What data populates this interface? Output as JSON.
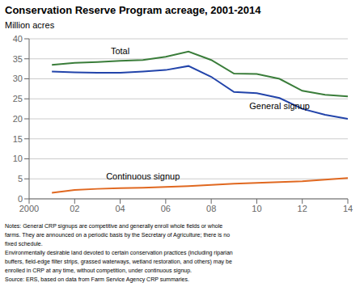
{
  "chart_data": {
    "type": "line",
    "title": "Conservation Reserve Program acreage,  2001-2014",
    "y_label": "Million acres",
    "x": [
      2001,
      2002,
      2003,
      2004,
      2005,
      2006,
      2007,
      2008,
      2009,
      2010,
      2011,
      2012,
      2013,
      2014
    ],
    "series": [
      {
        "name": "Total",
        "color": "#3a7d3a",
        "values": [
          33.5,
          34.0,
          34.2,
          34.5,
          34.7,
          35.5,
          36.8,
          34.7,
          31.3,
          31.2,
          30.0,
          27.0,
          26.0,
          25.6
        ]
      },
      {
        "name": "General signup",
        "color": "#2244aa",
        "values": [
          31.8,
          31.6,
          31.5,
          31.5,
          31.8,
          32.2,
          33.2,
          30.5,
          26.7,
          26.4,
          25.2,
          22.5,
          21.0,
          20.0
        ]
      },
      {
        "name": "Continuous signup",
        "color": "#e06820",
        "values": [
          1.5,
          2.2,
          2.5,
          2.7,
          2.8,
          3.0,
          3.2,
          3.5,
          3.8,
          4.0,
          4.2,
          4.4,
          4.8,
          5.2
        ]
      }
    ],
    "xlim": [
      2000,
      2014
    ],
    "xticks": [
      2000,
      {
        "value": 2002,
        "label": "02"
      },
      {
        "value": 2004,
        "label": "04"
      },
      {
        "value": 2006,
        "label": "06"
      },
      {
        "value": 2008,
        "label": "08"
      },
      {
        "value": 2010,
        "label": "10"
      },
      {
        "value": 2012,
        "label": "12"
      },
      {
        "value": 2014,
        "label": "14"
      }
    ],
    "ylim": [
      0,
      40
    ],
    "yticks": [
      0,
      5,
      10,
      15,
      20,
      25,
      30,
      35,
      40
    ],
    "grid": true,
    "notes": "Notes: General CRP signups are competitive and generally enroll whole fields or whole\nfarms. They are announced on a periodic basis by the Secretary of Agriculture; there is no\nfixed schedule.\nEnvironmentally desirable land devoted to certain conservation practices (including riparian\nbuffers, field-edge filter strips, grassed waterways, wetland restoration, and others) may be\nenrolled in CRP at any time, without competition, under continuous signup.\nSource: ERS, based on data from Farm Service Agency CRP summaries."
  }
}
